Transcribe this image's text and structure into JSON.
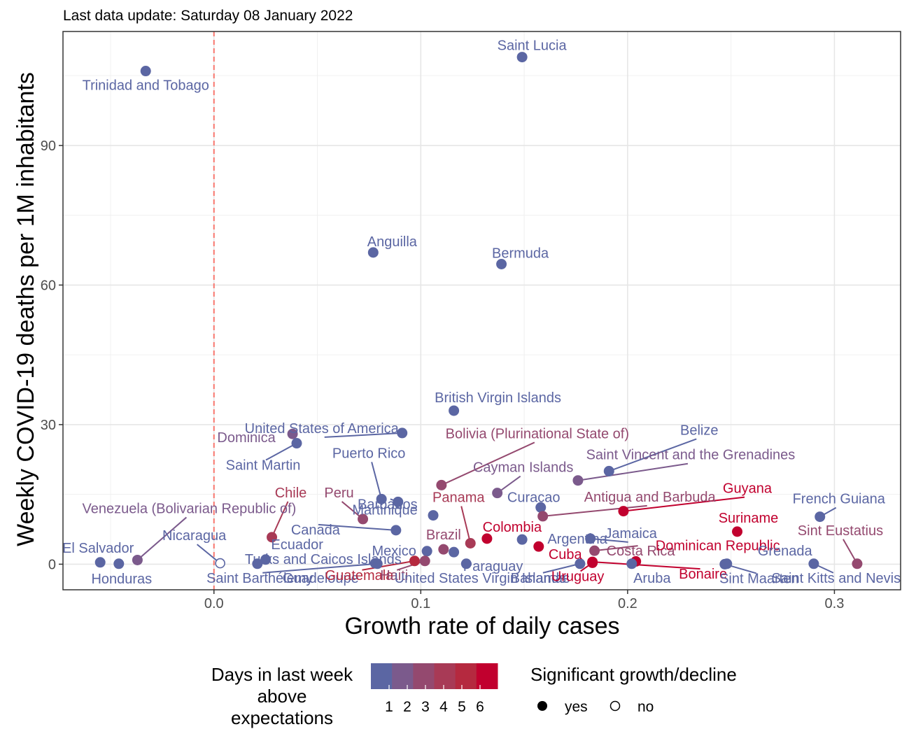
{
  "chart_data": {
    "type": "scatter",
    "subtitle": "Last data update: Saturday 08 January 2022",
    "xlabel": "Growth rate of daily cases",
    "ylabel": "Weekly COVID-19 deaths per 1M inhabitants",
    "xlim": [
      -0.073,
      0.332
    ],
    "ylim": [
      -5.5,
      114.5
    ],
    "x_ticks": [
      {
        "value": 0.0,
        "label": "0.0"
      },
      {
        "value": 0.1,
        "label": "0.1"
      },
      {
        "value": 0.2,
        "label": "0.2"
      },
      {
        "value": 0.3,
        "label": "0.3"
      }
    ],
    "y_ticks": [
      {
        "value": 0,
        "label": "0"
      },
      {
        "value": 30,
        "label": "30"
      },
      {
        "value": 60,
        "label": "60"
      },
      {
        "value": 90,
        "label": "90"
      }
    ],
    "reference_line_x": 0,
    "grid": true,
    "color_legend": {
      "title": [
        "Days in last week",
        "above",
        "expectations"
      ],
      "labels": [
        "1",
        "2",
        "3",
        "4",
        "5",
        "6"
      ],
      "colors": [
        "#5b66a3",
        "#7b5a8c",
        "#94496f",
        "#a83a56",
        "#b5293f",
        "#c1002e"
      ]
    },
    "shape_legend": {
      "title": "Significant growth/decline",
      "items": [
        {
          "label": "yes",
          "filled": true
        },
        {
          "label": "no",
          "filled": false
        }
      ]
    },
    "points": [
      {
        "name": "Trinidad and Tobago",
        "x": -0.033,
        "y": 106,
        "days": 0,
        "sig": true
      },
      {
        "name": "Saint Lucia",
        "x": 0.149,
        "y": 109,
        "days": 0,
        "sig": true
      },
      {
        "name": "Anguilla",
        "x": 0.077,
        "y": 67,
        "days": 0,
        "sig": true
      },
      {
        "name": "Bermuda",
        "x": 0.139,
        "y": 64.5,
        "days": 0,
        "sig": true
      },
      {
        "name": "British Virgin Islands",
        "x": 0.116,
        "y": 33,
        "days": 0,
        "sig": true
      },
      {
        "name": "United States of America",
        "x": 0.091,
        "y": 28.2,
        "days": 0,
        "sig": true
      },
      {
        "name": "Dominica",
        "x": 0.038,
        "y": 28,
        "days": 2,
        "sig": true
      },
      {
        "name": "Saint Martin",
        "x": 0.04,
        "y": 26,
        "days": 0,
        "sig": true
      },
      {
        "name": "Bolivia (Plurinational State of)",
        "x": 0.11,
        "y": 17,
        "days": 3,
        "sig": true
      },
      {
        "name": "Belize",
        "x": 0.191,
        "y": 20,
        "days": 0,
        "sig": true
      },
      {
        "name": "Saint Vincent and the Grenadines",
        "x": 0.176,
        "y": 18,
        "days": 2,
        "sig": true
      },
      {
        "name": "Puerto Rico",
        "x": 0.081,
        "y": 14,
        "days": 0,
        "sig": true
      },
      {
        "name": "Barbados",
        "x": 0.089,
        "y": 13.4,
        "days": 0,
        "sig": true
      },
      {
        "name": "Cayman Islands",
        "x": 0.137,
        "y": 15.3,
        "days": 2,
        "sig": true
      },
      {
        "name": "Curacao",
        "x": 0.158,
        "y": 12.2,
        "days": 0,
        "sig": true
      },
      {
        "name": "Guyana",
        "x": 0.198,
        "y": 11.4,
        "days": 6,
        "sig": true
      },
      {
        "name": "Chile",
        "x": 0.028,
        "y": 5.8,
        "days": 4,
        "sig": true
      },
      {
        "name": "Peru",
        "x": 0.072,
        "y": 9.7,
        "days": 3,
        "sig": true
      },
      {
        "name": "Martinique",
        "x": 0.106,
        "y": 10.5,
        "days": 0,
        "sig": true
      },
      {
        "name": "Panama",
        "x": 0.124,
        "y": 4.5,
        "days": 4,
        "sig": true
      },
      {
        "name": "Antigua and Barbuda",
        "x": 0.159,
        "y": 10.3,
        "days": 3,
        "sig": true
      },
      {
        "name": "French Guiana",
        "x": 0.293,
        "y": 10.2,
        "days": 0,
        "sig": true
      },
      {
        "name": "Venezuela (Bolivarian Republic of)",
        "x": -0.037,
        "y": 0.9,
        "days": 2,
        "sig": true
      },
      {
        "name": "Canada",
        "x": 0.088,
        "y": 7.3,
        "days": 0,
        "sig": true
      },
      {
        "name": "Colombia",
        "x": 0.132,
        "y": 5.5,
        "days": 6,
        "sig": true
      },
      {
        "name": "Jamaica",
        "x": 0.182,
        "y": 5.5,
        "days": 0,
        "sig": true
      },
      {
        "name": "Argentina",
        "x": 0.149,
        "y": 5.3,
        "days": 0,
        "sig": true
      },
      {
        "name": "Suriname",
        "x": 0.253,
        "y": 7,
        "days": 6,
        "sig": true
      },
      {
        "name": "Sint Eustatius",
        "x": 0.311,
        "y": 0.1,
        "days": 3,
        "sig": true
      },
      {
        "name": "Nicaragua",
        "x": 0.003,
        "y": 0.2,
        "days": 0,
        "sig": false
      },
      {
        "name": "El Salvador",
        "x": -0.055,
        "y": 0.4,
        "days": 0,
        "sig": true
      },
      {
        "name": "Honduras",
        "x": -0.046,
        "y": 0.1,
        "days": 0,
        "sig": true
      },
      {
        "name": "Ecuador",
        "x": 0.025,
        "y": 1.0,
        "days": 0,
        "sig": true
      },
      {
        "name": "Brazil",
        "x": 0.111,
        "y": 3.2,
        "days": 3,
        "sig": true
      },
      {
        "name": "Mexico",
        "x": 0.103,
        "y": 2.8,
        "days": 0,
        "sig": true
      },
      {
        "name": "Cuba",
        "x": 0.157,
        "y": 3.8,
        "days": 6,
        "sig": true
      },
      {
        "name": "Costa Rica",
        "x": 0.184,
        "y": 2.9,
        "days": 3,
        "sig": true
      },
      {
        "name": "Dominican Republic",
        "x": 0.204,
        "y": 0.6,
        "days": 6,
        "sig": true
      },
      {
        "name": "Grenada",
        "x": 0.248,
        "y": 0.1,
        "days": 0,
        "sig": true
      },
      {
        "name": "Paraguay",
        "x": 0.116,
        "y": 2.6,
        "days": 0,
        "sig": true
      },
      {
        "name": "Turks and Caicos Islands",
        "x": 0.021,
        "y": 0.1,
        "days": 0,
        "sig": true
      },
      {
        "name": "Guadeloupe",
        "x": 0.078,
        "y": 0.2,
        "days": 0,
        "sig": true
      },
      {
        "name": "Saint Barthélemy",
        "x": 0.079,
        "y": 0.1,
        "days": 0,
        "sig": true
      },
      {
        "name": "Guatemala",
        "x": 0.097,
        "y": 0.7,
        "days": 5,
        "sig": true
      },
      {
        "name": "Haiti",
        "x": 0.102,
        "y": 0.7,
        "days": 3,
        "sig": true
      },
      {
        "name": "United States Virgin Islands",
        "x": 0.122,
        "y": 0.1,
        "days": 0,
        "sig": true
      },
      {
        "name": "Bahamas",
        "x": 0.177,
        "y": 0.1,
        "days": 0,
        "sig": true
      },
      {
        "name": "Uruguay",
        "x": 0.183,
        "y": 0.3,
        "days": 6,
        "sig": true
      },
      {
        "name": "Aruba",
        "x": 0.202,
        "y": 0.1,
        "days": 0,
        "sig": true
      },
      {
        "name": "Bonaire",
        "x": 0.183,
        "y": 0.5,
        "days": 6,
        "sig": true
      },
      {
        "name": "Sint Maarten",
        "x": 0.247,
        "y": 0.0,
        "days": 0,
        "sig": true
      },
      {
        "name": "Saint Kitts and Nevis",
        "x": 0.29,
        "y": 0.1,
        "days": 0,
        "sig": true
      }
    ]
  }
}
